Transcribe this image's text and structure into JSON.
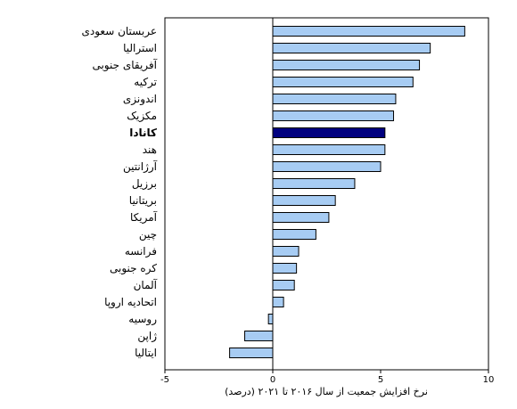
{
  "chart_data": {
    "type": "bar",
    "orientation": "horizontal",
    "categories": [
      "عربستان سعودی",
      "استرالیا",
      "آفریقای جنوبی",
      "ترکیه",
      "اندونزی",
      "مکزیک",
      "کانادا",
      "هند",
      "آرژانتین",
      "برزیل",
      "بریتانیا",
      "آمریکا",
      "چین",
      "فرانسه",
      "کره جنوبی",
      "آلمان",
      "اتحادیه اروپا",
      "روسیه",
      "ژاپن",
      "ایتالیا"
    ],
    "values": [
      8.9,
      7.3,
      6.8,
      6.5,
      5.7,
      5.6,
      5.2,
      5.2,
      5.0,
      3.8,
      2.9,
      2.6,
      2.0,
      1.2,
      1.1,
      1.0,
      0.5,
      -0.2,
      -1.3,
      -2.0
    ],
    "highlight": "کانادا",
    "xlabel": "نرخ افزایش جمعیت از سال ۲۰۱۶ تا ۲۰۲۱ (درصد)",
    "xlim": [
      -5,
      10
    ],
    "xticks": [
      "-5",
      "0",
      "5",
      "10"
    ],
    "grid": false,
    "colors": {
      "bar": "#a7ccf3",
      "bar_highlight": "#00007f",
      "bar_edge": "#000000"
    }
  }
}
